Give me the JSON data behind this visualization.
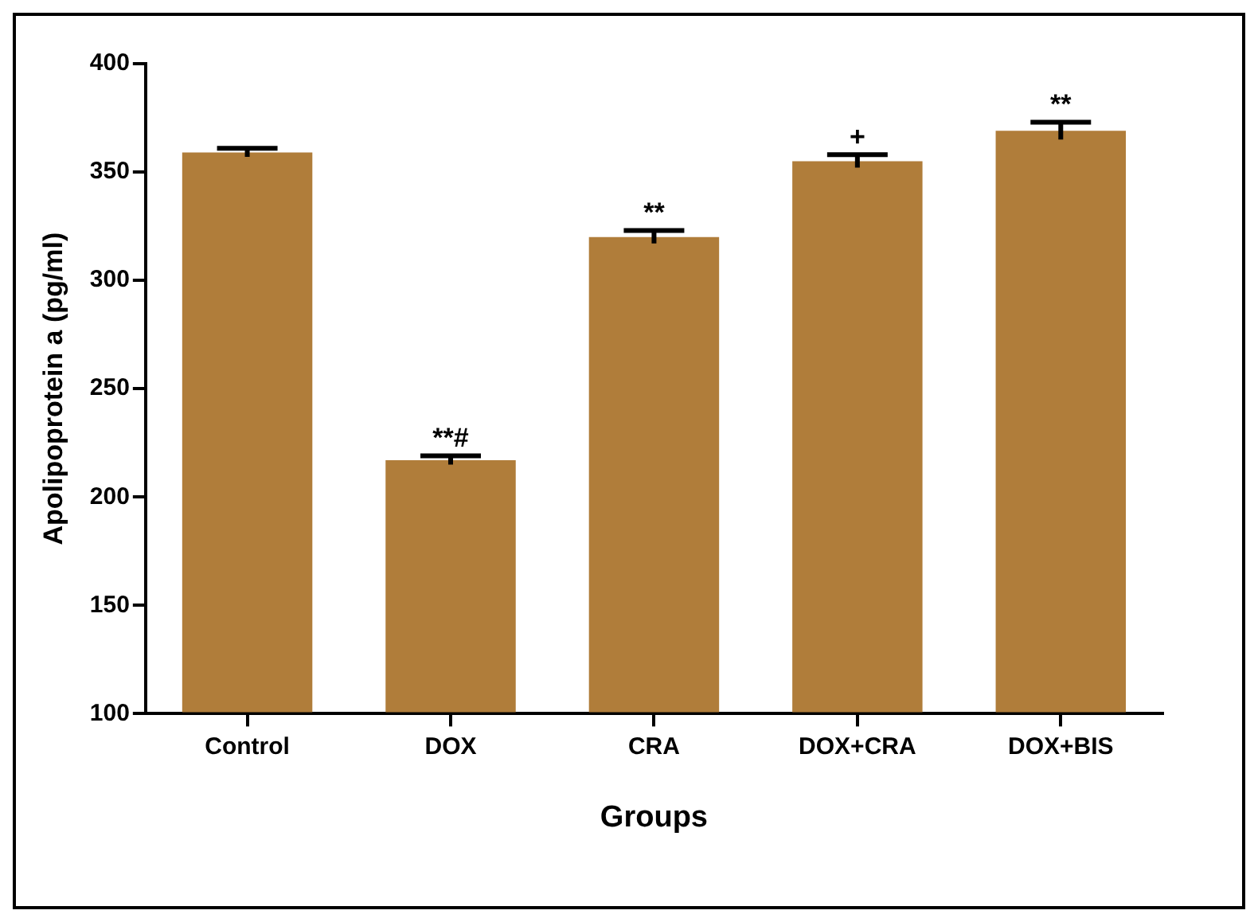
{
  "chart_data": {
    "type": "bar",
    "xlabel": "Groups",
    "ylabel": "Apolipoprotein a (pg/ml)",
    "categories": [
      "Control",
      "DOX",
      "CRA",
      "DOX+CRA",
      "DOX+BIS"
    ],
    "values": [
      359,
      217,
      320,
      355,
      369
    ],
    "errors": [
      2,
      2,
      3,
      3,
      4
    ],
    "color": "#b07d3a",
    "ylim": [
      100,
      400
    ],
    "yticks": [
      100,
      150,
      200,
      250,
      300,
      350,
      400
    ],
    "grid": false,
    "legend": false,
    "annotations": [
      {
        "text": "**#",
        "x": "DOX",
        "y": 219
      },
      {
        "text": "**",
        "x": "CRA",
        "y": 323
      },
      {
        "text": "+",
        "x": "DOX+CRA",
        "y": 358
      },
      {
        "text": "**",
        "x": "DOX+BIS",
        "y": 373
      }
    ]
  }
}
